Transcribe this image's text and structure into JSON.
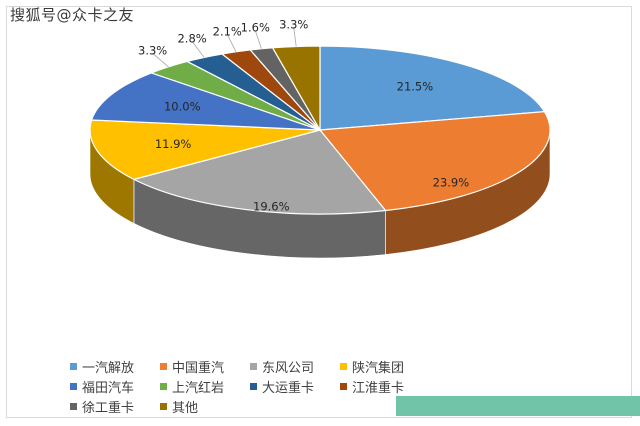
{
  "watermark": "搜狐号@众卡之友",
  "chart_data": {
    "type": "pie",
    "title": "",
    "categories": [
      "一汽解放",
      "中国重汽",
      "东风公司",
      "陕汽集团",
      "福田汽车",
      "上汽红岩",
      "大运重卡",
      "江淮重卡",
      "徐工重卡",
      "其他"
    ],
    "values": [
      21.5,
      23.9,
      19.6,
      11.9,
      10.0,
      3.3,
      2.8,
      2.1,
      1.6,
      3.3
    ],
    "labels": [
      "21.5%",
      "23.9%",
      "19.6%",
      "11.9%",
      "10.0%",
      "3.3%",
      "2.8%",
      "2.1%",
      "1.6%",
      "3.3%"
    ],
    "colors": [
      "#5b9bd5",
      "#ed7d31",
      "#a5a5a5",
      "#ffc000",
      "#4472c4",
      "#70ad47",
      "#255e91",
      "#9e480e",
      "#636363",
      "#997300"
    ],
    "style": "3d-pie",
    "legend_position": "bottom"
  }
}
